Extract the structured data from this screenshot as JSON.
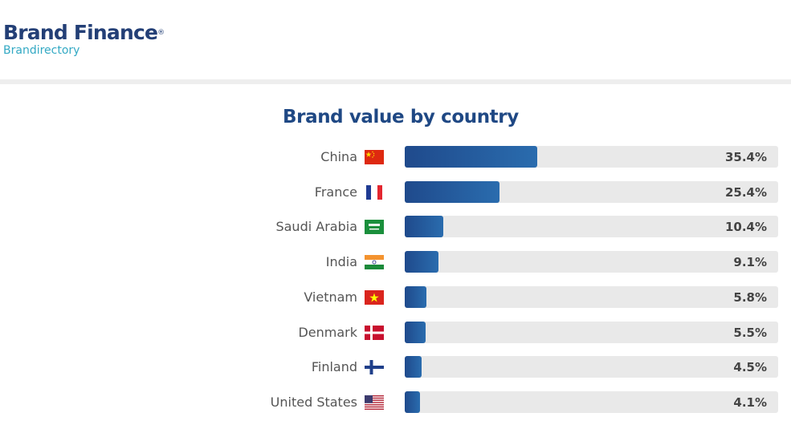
{
  "logo": {
    "main": "Brand Finance",
    "reg": "®",
    "sub": "Brandirectory"
  },
  "chart_data": {
    "type": "bar",
    "orientation": "horizontal",
    "title": "Brand value by country",
    "unit": "%",
    "categories": [
      "China",
      "France",
      "Saudi Arabia",
      "India",
      "Vietnam",
      "Denmark",
      "Finland",
      "United States"
    ],
    "values": [
      35.4,
      25.4,
      10.4,
      9.1,
      5.8,
      5.5,
      4.5,
      4.1
    ],
    "labels": [
      "35.4%",
      "25.4%",
      "10.4%",
      "9.1%",
      "5.8%",
      "5.5%",
      "4.5%",
      "4.1%"
    ],
    "flags": [
      "china-flag-icon",
      "france-flag-icon",
      "saudi-arabia-flag-icon",
      "india-flag-icon",
      "vietnam-flag-icon",
      "denmark-flag-icon",
      "finland-flag-icon",
      "usa-flag-icon"
    ],
    "xlim": [
      0,
      100
    ],
    "colors": {
      "bar_start": "#1f4a8c",
      "bar_end": "#2a6cae",
      "track": "#e9e9e9",
      "title": "#1f4884"
    }
  }
}
